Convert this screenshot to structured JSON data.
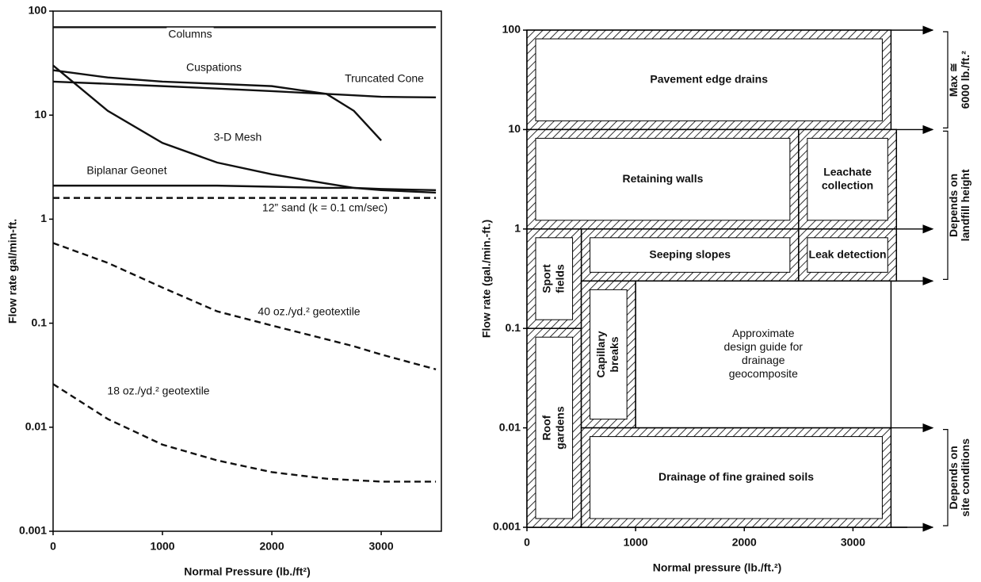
{
  "charts": [
    {
      "chart_data": {
        "type": "line",
        "log_y": true,
        "y_label": "Flow rate gal/min-ft.",
        "x_label": "Normal Pressure (lb./ft²)",
        "xlim": [
          0,
          3550
        ],
        "xticks": [
          0,
          1000,
          2000,
          3000
        ],
        "ylim": [
          0.001,
          100
        ],
        "yticks": [
          0.001,
          0.01,
          0.1,
          1,
          10,
          100
        ],
        "x": [
          0,
          500,
          1000,
          1500,
          2000,
          2500,
          2750,
          3000,
          3500
        ],
        "series": [
          {
            "name": "Columns",
            "color": "#111111",
            "dashed": false,
            "values": [
              70,
              70,
              70,
              70,
              70,
              70,
              70,
              70,
              70
            ]
          },
          {
            "name": "Cuspations",
            "color": "#111111",
            "dashed": false,
            "values": [
              27,
              23,
              21,
              20,
              19,
              16,
              11,
              5.7,
              null
            ]
          },
          {
            "name": "Truncated Cone",
            "color": "#111111",
            "dashed": false,
            "values": [
              21,
              20,
              19,
              18,
              17,
              16,
              15.5,
              15,
              14.8
            ]
          },
          {
            "name": "3-D Mesh",
            "color": "#111111",
            "dashed": false,
            "values": [
              30,
              11,
              5.4,
              3.5,
              2.7,
              2.2,
              2,
              1.9,
              1.8
            ]
          },
          {
            "name": "Biplanar Geonet",
            "color": "#111111",
            "dashed": false,
            "values": [
              2.1,
              2.1,
              2.1,
              2.1,
              2.05,
              2,
              2,
              1.95,
              1.9
            ]
          },
          {
            "name": "12” sand (k = 0.1 cm/sec)",
            "color": "#111111",
            "dashed": true,
            "values": [
              1.6,
              1.6,
              1.6,
              1.6,
              1.6,
              1.6,
              1.6,
              1.6,
              1.6
            ]
          },
          {
            "name": "40 oz./yd.² geotextile",
            "color": "#111111",
            "dashed": true,
            "values": [
              0.59,
              0.38,
              0.22,
              0.13,
              0.095,
              0.07,
              0.06,
              0.05,
              0.036
            ]
          },
          {
            "name": "18 oz./yd.² geotextile",
            "color": "#111111",
            "dashed": true,
            "values": [
              0.026,
              0.012,
              0.0068,
              0.0048,
              0.0037,
              0.0032,
              0.0031,
              0.003,
              0.003
            ]
          }
        ]
      }
    },
    {
      "chart_data": {
        "type": "zones",
        "log_y": true,
        "y_label": "Flow rate (gal./min.-ft.)",
        "x_label": "Normal pressure (lb./ft.²)",
        "xlim": [
          0,
          3500
        ],
        "xticks": [
          0,
          1000,
          2000,
          3000
        ],
        "ylim": [
          0.001,
          100
        ],
        "yticks": [
          0.001,
          0.01,
          0.1,
          1,
          10,
          100
        ],
        "arrow_levels": [
          100,
          10,
          1,
          0.3,
          0.01,
          0.001
        ],
        "regions": [
          {
            "label": [
              "Pavement edge drains"
            ],
            "x": [
              0,
              3350
            ],
            "y": [
              10,
              100
            ],
            "hatched": true
          },
          {
            "label": [
              "Retaining walls"
            ],
            "x": [
              0,
              2500
            ],
            "y": [
              1,
              10
            ],
            "hatched": true
          },
          {
            "label": [
              "Leachate",
              "collection"
            ],
            "x": [
              2500,
              3400
            ],
            "y": [
              1,
              10
            ],
            "hatched": true
          },
          {
            "label": [
              "Seeping slopes"
            ],
            "x": [
              500,
              2500
            ],
            "y": [
              0.3,
              1
            ],
            "hatched": true
          },
          {
            "label": [
              "Leak detection"
            ],
            "x": [
              2500,
              3400
            ],
            "y": [
              0.3,
              1
            ],
            "hatched": true
          },
          {
            "label": [
              "Sport",
              "fields"
            ],
            "x": [
              0,
              500
            ],
            "y": [
              0.1,
              1
            ],
            "hatched": true
          },
          {
            "label": [
              "Roof",
              "gardens"
            ],
            "x": [
              0,
              500
            ],
            "y": [
              0.001,
              0.1
            ],
            "hatched": true
          },
          {
            "label": [
              "Capillary",
              "breaks"
            ],
            "x": [
              500,
              1000
            ],
            "y": [
              0.01,
              0.3
            ],
            "hatched": true
          },
          {
            "label": [
              "Approximate",
              "design guide for",
              "drainage",
              "geocomposite"
            ],
            "x": [
              1000,
              3350
            ],
            "y": [
              0.01,
              0.3
            ],
            "hatched": false
          },
          {
            "label": [
              "Drainage of fine grained soils"
            ],
            "x": [
              500,
              3350
            ],
            "y": [
              0.001,
              0.01
            ],
            "hatched": true
          }
        ],
        "brackets": [
          {
            "label": [
              "Max ≅",
              "6000 lb./ft.²"
            ],
            "y": [
              10,
              100
            ]
          },
          {
            "label": [
              "Depends on",
              "landfill height"
            ],
            "y": [
              0.3,
              10
            ]
          },
          {
            "label": [
              "Depends on",
              "site conditions"
            ],
            "y": [
              0.001,
              0.01
            ]
          }
        ]
      }
    }
  ]
}
